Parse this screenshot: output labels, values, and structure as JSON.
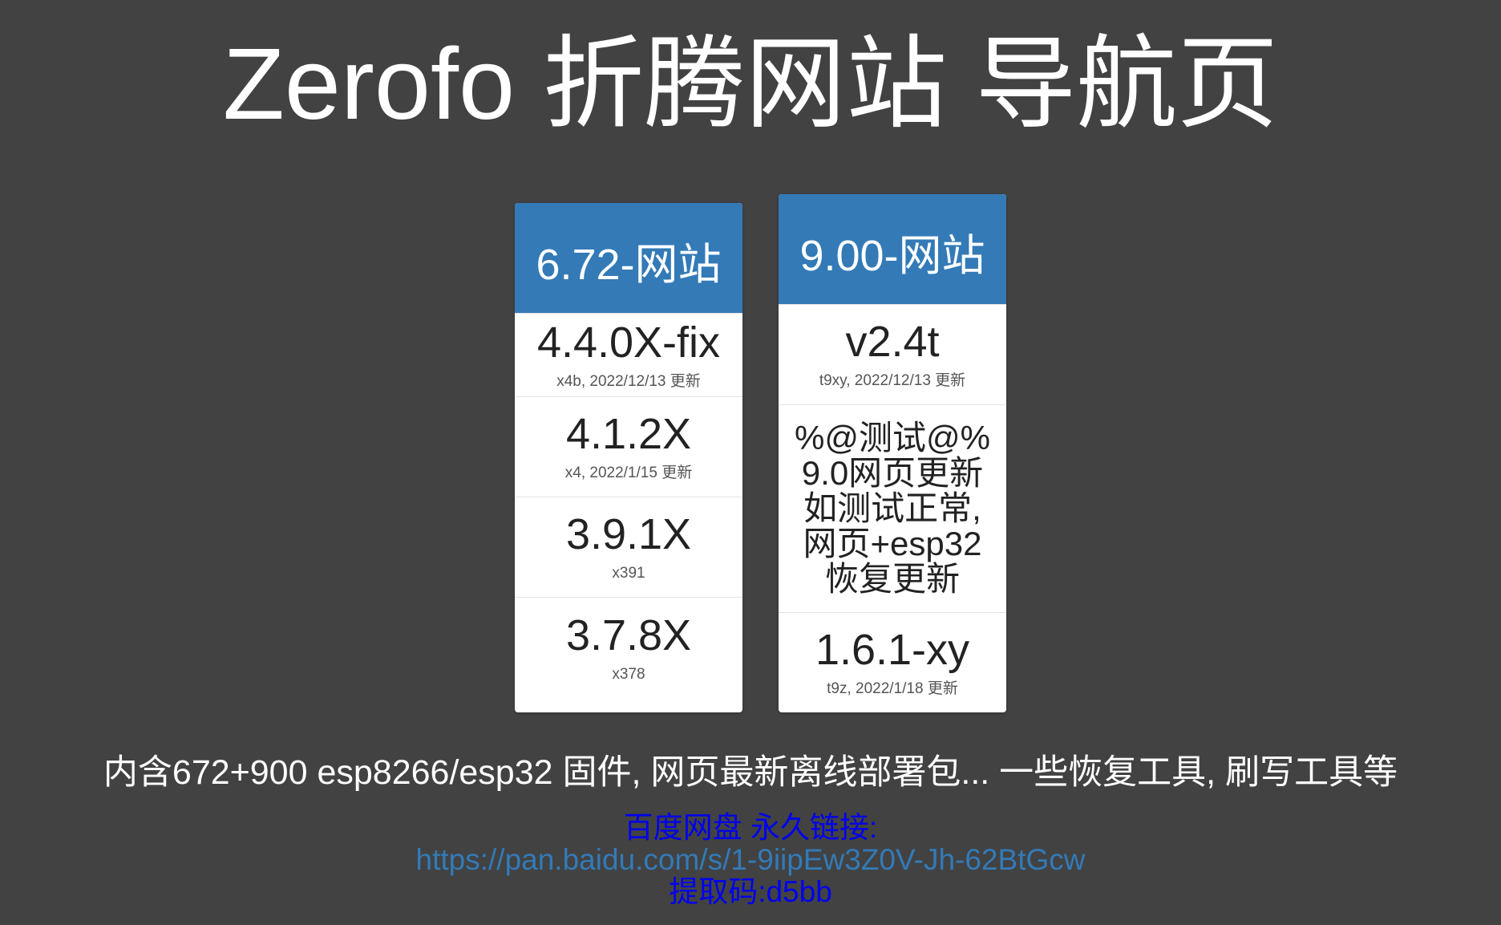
{
  "page": {
    "title": "Zerofo 折腾网站 导航页"
  },
  "cards": [
    {
      "header": "6.72-网站",
      "items": [
        {
          "title": "4.4.0X-fix",
          "sub": "x4b, 2022/12/13 更新"
        },
        {
          "title": "4.1.2X",
          "sub": "x4, 2022/1/15 更新"
        },
        {
          "title": "3.9.1X",
          "sub": "x391"
        },
        {
          "title": "3.7.8X",
          "sub": "x378"
        }
      ]
    },
    {
      "header": "9.00-网站",
      "items": [
        {
          "title": "v2.4t",
          "sub": "t9xy, 2022/12/13 更新"
        },
        {
          "text": "%@测试@%\n9.0网页更新\n如测试正常,\n网页+esp32\n恢复更新"
        },
        {
          "title": "1.6.1-xy",
          "sub": "t9z, 2022/1/18 更新"
        }
      ]
    }
  ],
  "footer": {
    "description": "内含672+900 esp8266/esp32 固件, 网页最新离线部署包... 一些恢复工具, 刷写工具等",
    "link_label": "百度网盘 永久链接:",
    "link_url": "https://pan.baidu.com/s/1-9iipEw3Z0V-Jh-62BtGcw",
    "code_label": "提取码:d5bb"
  },
  "colors": {
    "background": "#424242",
    "card_header": "#337ab7",
    "link_blue": "#0000ee"
  }
}
